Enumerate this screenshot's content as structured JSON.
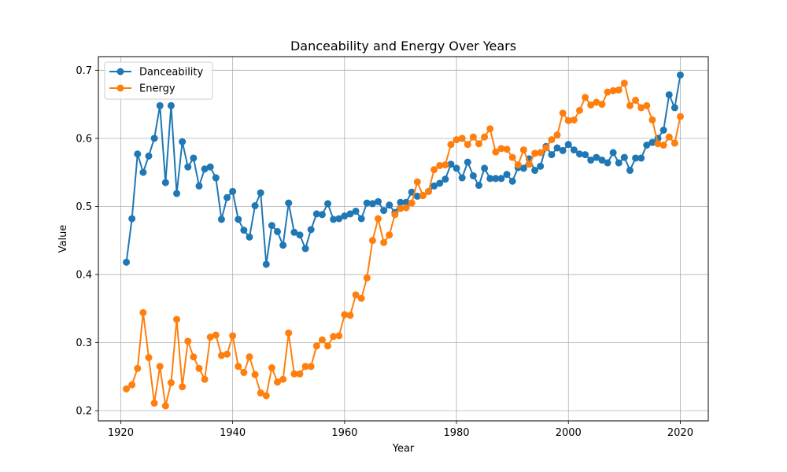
{
  "chart_data": {
    "type": "line",
    "title": "Danceability and Energy Over Years",
    "xlabel": "Year",
    "ylabel": "Value",
    "xlim": [
      1916,
      2025
    ],
    "ylim": [
      0.185,
      0.72
    ],
    "xticks": [
      1920,
      1940,
      1960,
      1980,
      2000,
      2020
    ],
    "yticks": [
      0.2,
      0.3,
      0.4,
      0.5,
      0.6,
      0.7
    ],
    "grid": true,
    "legend_position": "top-left",
    "x": [
      1921,
      1922,
      1923,
      1924,
      1925,
      1926,
      1927,
      1928,
      1929,
      1930,
      1931,
      1932,
      1933,
      1934,
      1935,
      1936,
      1937,
      1938,
      1939,
      1940,
      1941,
      1942,
      1943,
      1944,
      1945,
      1946,
      1947,
      1948,
      1949,
      1950,
      1951,
      1952,
      1953,
      1954,
      1955,
      1956,
      1957,
      1958,
      1959,
      1960,
      1961,
      1962,
      1963,
      1964,
      1965,
      1966,
      1967,
      1968,
      1969,
      1970,
      1971,
      1972,
      1973,
      1974,
      1975,
      1976,
      1977,
      1978,
      1979,
      1980,
      1981,
      1982,
      1983,
      1984,
      1985,
      1986,
      1987,
      1988,
      1989,
      1990,
      1991,
      1992,
      1993,
      1994,
      1995,
      1996,
      1997,
      1998,
      1999,
      2000,
      2001,
      2002,
      2003,
      2004,
      2005,
      2006,
      2007,
      2008,
      2009,
      2010,
      2011,
      2012,
      2013,
      2014,
      2015,
      2016,
      2017,
      2018,
      2019,
      2020
    ],
    "series": [
      {
        "name": "Danceability",
        "color": "#1f77b4",
        "values": [
          0.418,
          0.482,
          0.577,
          0.55,
          0.574,
          0.6,
          0.648,
          0.535,
          0.648,
          0.519,
          0.595,
          0.558,
          0.571,
          0.53,
          0.555,
          0.558,
          0.542,
          0.481,
          0.513,
          0.522,
          0.481,
          0.465,
          0.455,
          0.501,
          0.52,
          0.415,
          0.472,
          0.463,
          0.443,
          0.505,
          0.462,
          0.458,
          0.438,
          0.466,
          0.489,
          0.488,
          0.504,
          0.481,
          0.482,
          0.486,
          0.489,
          0.493,
          0.482,
          0.505,
          0.504,
          0.507,
          0.494,
          0.502,
          0.491,
          0.506,
          0.506,
          0.521,
          0.515,
          0.516,
          0.522,
          0.53,
          0.534,
          0.54,
          0.562,
          0.556,
          0.542,
          0.565,
          0.545,
          0.531,
          0.556,
          0.541,
          0.541,
          0.541,
          0.547,
          0.537,
          0.557,
          0.556,
          0.57,
          0.553,
          0.559,
          0.588,
          0.576,
          0.586,
          0.582,
          0.591,
          0.583,
          0.577,
          0.576,
          0.568,
          0.572,
          0.568,
          0.564,
          0.579,
          0.564,
          0.572,
          0.553,
          0.571,
          0.571,
          0.59,
          0.594,
          0.6,
          0.612,
          0.664,
          0.645,
          0.693
        ]
      },
      {
        "name": "Energy",
        "color": "#ff7f0e",
        "values": [
          0.232,
          0.238,
          0.262,
          0.344,
          0.278,
          0.211,
          0.265,
          0.207,
          0.241,
          0.334,
          0.235,
          0.302,
          0.279,
          0.262,
          0.246,
          0.308,
          0.311,
          0.281,
          0.283,
          0.31,
          0.265,
          0.256,
          0.279,
          0.253,
          0.226,
          0.222,
          0.263,
          0.242,
          0.246,
          0.314,
          0.254,
          0.254,
          0.265,
          0.265,
          0.295,
          0.304,
          0.295,
          0.309,
          0.31,
          0.341,
          0.34,
          0.37,
          0.365,
          0.395,
          0.45,
          0.482,
          0.447,
          0.458,
          0.488,
          0.497,
          0.498,
          0.505,
          0.536,
          0.516,
          0.522,
          0.554,
          0.56,
          0.561,
          0.591,
          0.598,
          0.6,
          0.591,
          0.602,
          0.592,
          0.602,
          0.614,
          0.58,
          0.585,
          0.584,
          0.572,
          0.561,
          0.583,
          0.562,
          0.578,
          0.579,
          0.586,
          0.598,
          0.605,
          0.637,
          0.626,
          0.627,
          0.641,
          0.66,
          0.649,
          0.653,
          0.65,
          0.668,
          0.67,
          0.671,
          0.681,
          0.648,
          0.656,
          0.645,
          0.648,
          0.627,
          0.592,
          0.59,
          0.602,
          0.593,
          0.632
        ]
      }
    ]
  }
}
